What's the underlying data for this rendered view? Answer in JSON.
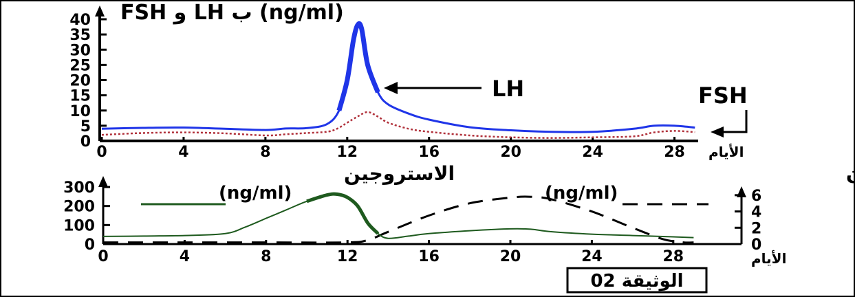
{
  "chart_data": [
    {
      "type": "line",
      "title": "FSH و LH ب (ng/ml)",
      "xlabel": "الأيام",
      "ylabel": "",
      "xlim": [
        0,
        30
      ],
      "ylim": [
        0,
        40
      ],
      "x_ticks": [
        "0",
        "4",
        "8",
        "12",
        "16",
        "20",
        "24",
        "28"
      ],
      "y_ticks": [
        "0",
        "5",
        "10",
        "15",
        "20",
        "25",
        "30",
        "35",
        "40"
      ],
      "series": [
        {
          "name": "LH",
          "color": "#1f35e8",
          "style": "solid-thick",
          "points": [
            [
              0,
              4
            ],
            [
              2,
              4.3
            ],
            [
              4,
              4.4
            ],
            [
              6,
              4
            ],
            [
              8,
              3.6
            ],
            [
              9,
              4.1
            ],
            [
              10,
              4.2
            ],
            [
              11,
              5.5
            ],
            [
              11.6,
              10
            ],
            [
              12,
              20
            ],
            [
              12.3,
              33
            ],
            [
              12.5,
              38
            ],
            [
              12.7,
              37
            ],
            [
              13,
              25
            ],
            [
              13.5,
              16
            ],
            [
              14,
              12
            ],
            [
              15,
              9
            ],
            [
              16,
              7
            ],
            [
              18,
              4.5
            ],
            [
              20,
              3.5
            ],
            [
              22,
              3
            ],
            [
              24,
              3
            ],
            [
              26,
              4
            ],
            [
              27,
              5
            ],
            [
              28,
              5
            ],
            [
              29,
              4.4
            ]
          ]
        },
        {
          "name": "FSH",
          "color": "#b0303a",
          "style": "dotted",
          "points": [
            [
              0,
              2
            ],
            [
              2,
              2.6
            ],
            [
              4,
              2.8
            ],
            [
              6,
              2.5
            ],
            [
              8,
              1.8
            ],
            [
              9,
              2.2
            ],
            [
              10,
              2.6
            ],
            [
              11,
              3
            ],
            [
              11.5,
              4
            ],
            [
              12,
              6
            ],
            [
              12.5,
              8
            ],
            [
              13,
              9.5
            ],
            [
              13.5,
              8
            ],
            [
              14,
              6
            ],
            [
              15,
              4
            ],
            [
              16,
              3
            ],
            [
              18,
              1.8
            ],
            [
              20,
              1.2
            ],
            [
              22,
              1
            ],
            [
              24,
              1.2
            ],
            [
              26,
              1.5
            ],
            [
              27,
              2.8
            ],
            [
              28,
              3.3
            ],
            [
              29,
              2.9
            ]
          ]
        }
      ],
      "annotations": [
        "LH",
        "FSH"
      ]
    },
    {
      "type": "line",
      "xlabel": "الأيام",
      "x_ticks": [
        "0",
        "4",
        "8",
        "12",
        "16",
        "20",
        "24",
        "28"
      ],
      "y_left_ticks": [
        "0",
        "100",
        "200",
        "300"
      ],
      "y_right_ticks": [
        "0",
        "2",
        "4",
        "6"
      ],
      "xlim": [
        0,
        30
      ],
      "ylim_left": [
        0,
        300
      ],
      "ylim_right": [
        0,
        7
      ],
      "series": [
        {
          "name": "الاستروجين",
          "unit": "(ng/ml)",
          "axis": "left",
          "color": "#1e5a1e",
          "style": "solid",
          "points": [
            [
              0,
              40
            ],
            [
              2,
              42
            ],
            [
              4,
              45
            ],
            [
              6,
              55
            ],
            [
              7,
              90
            ],
            [
              8,
              135
            ],
            [
              9,
              180
            ],
            [
              10,
              225
            ],
            [
              11,
              258
            ],
            [
              11.5,
              262
            ],
            [
              12,
              245
            ],
            [
              12.5,
              200
            ],
            [
              13,
              110
            ],
            [
              13.5,
              55
            ],
            [
              14,
              30
            ],
            [
              15,
              42
            ],
            [
              16,
              55
            ],
            [
              18,
              70
            ],
            [
              20,
              80
            ],
            [
              21,
              78
            ],
            [
              22,
              65
            ],
            [
              24,
              52
            ],
            [
              26,
              45
            ],
            [
              28,
              38
            ],
            [
              29,
              34
            ]
          ]
        },
        {
          "name": "البروجستيرون",
          "unit": "(ng/ml)",
          "axis": "right",
          "color": "#000000",
          "style": "dashed",
          "points": [
            [
              0,
              0.2
            ],
            [
              4,
              0.2
            ],
            [
              8,
              0.2
            ],
            [
              12,
              0.2
            ],
            [
              13,
              0.5
            ],
            [
              14,
              1.5
            ],
            [
              16,
              3.5
            ],
            [
              18,
              5
            ],
            [
              20,
              5.7
            ],
            [
              21,
              5.8
            ],
            [
              22,
              5.5
            ],
            [
              24,
              4
            ],
            [
              26,
              2
            ],
            [
              27.5,
              0.6
            ],
            [
              28.5,
              0.2
            ],
            [
              29,
              0.2
            ]
          ]
        }
      ]
    }
  ],
  "doc_label": "الوثيقة 02"
}
